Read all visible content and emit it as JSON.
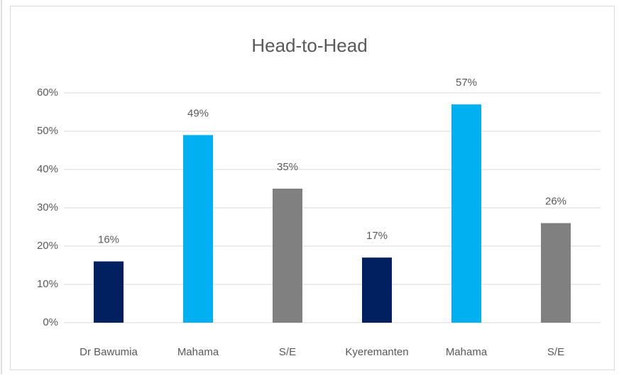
{
  "chart_data": {
    "type": "bar",
    "title": "Head-to-Head",
    "categories": [
      "Dr Bawumia",
      "Mahama",
      "S/E",
      "Kyeremanten",
      "Mahama",
      "S/E"
    ],
    "values": [
      16,
      49,
      35,
      17,
      57,
      26
    ],
    "value_labels": [
      "16%",
      "49%",
      "35%",
      "17%",
      "57%",
      "26%"
    ],
    "colors": [
      "#002060",
      "#00b0f0",
      "#808080",
      "#002060",
      "#00b0f0",
      "#808080"
    ],
    "ylim": [
      0,
      60
    ],
    "yticks": [
      {
        "value": 0,
        "label": "0%"
      },
      {
        "value": 10,
        "label": "10%"
      },
      {
        "value": 20,
        "label": "20%"
      },
      {
        "value": 30,
        "label": "30%"
      },
      {
        "value": 40,
        "label": "40%"
      },
      {
        "value": 50,
        "label": "50%"
      },
      {
        "value": 60,
        "label": "60%"
      }
    ],
    "grid": true
  }
}
